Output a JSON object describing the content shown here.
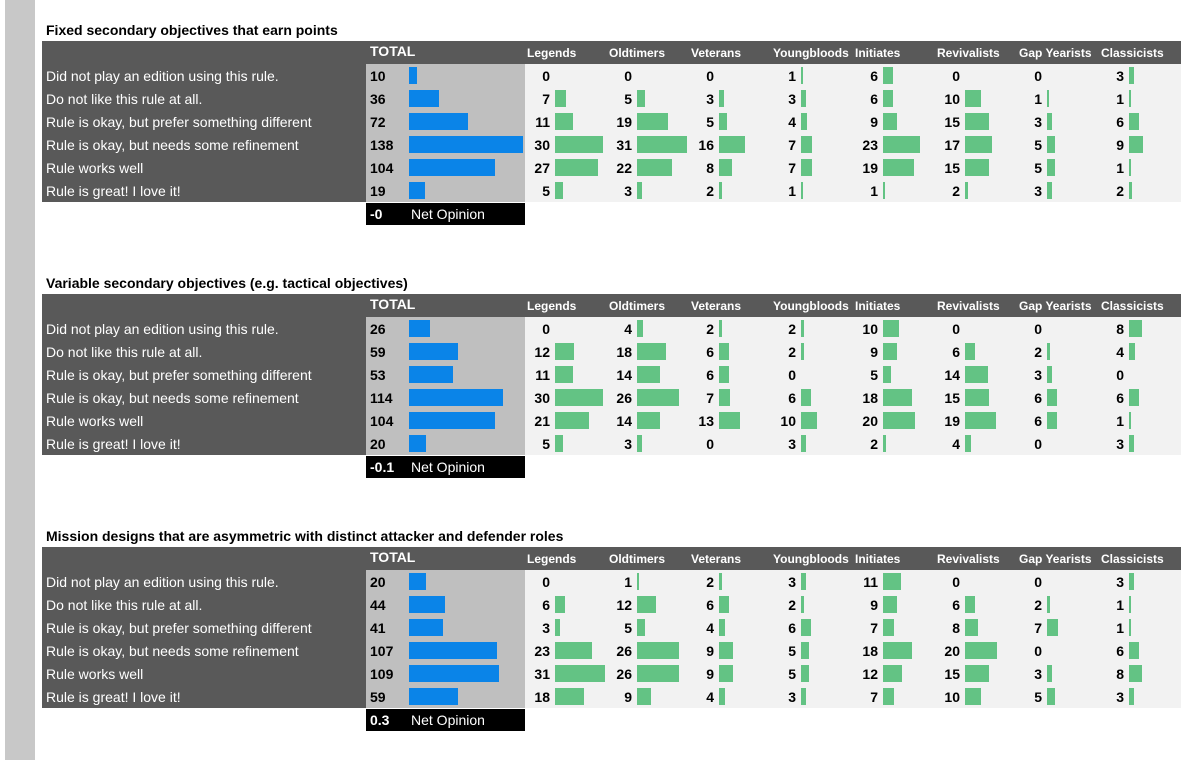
{
  "chart_data": [
    {
      "type": "table",
      "title": "Fixed secondary objectives that earn points",
      "total_header": "TOTAL",
      "groups": [
        "Legends",
        "Oldtimers",
        "Veterans",
        "Youngbloods",
        "Initiates",
        "Revivalists",
        "Gap Yearists",
        "Classicists"
      ],
      "rows": [
        {
          "label": "Did not play an edition using this rule.",
          "total": 10,
          "values": [
            0,
            0,
            0,
            1,
            6,
            0,
            0,
            3
          ]
        },
        {
          "label": "Do not like this rule at all.",
          "total": 36,
          "values": [
            7,
            5,
            3,
            3,
            6,
            10,
            1,
            1
          ]
        },
        {
          "label": "Rule is okay, but prefer something different",
          "total": 72,
          "values": [
            11,
            19,
            5,
            4,
            9,
            15,
            3,
            6
          ]
        },
        {
          "label": "Rule is okay, but needs some refinement",
          "total": 138,
          "values": [
            30,
            31,
            16,
            7,
            23,
            17,
            5,
            9
          ]
        },
        {
          "label": "Rule works well",
          "total": 104,
          "values": [
            27,
            22,
            8,
            7,
            19,
            15,
            5,
            1
          ]
        },
        {
          "label": "Rule is great! I love it!",
          "total": 19,
          "values": [
            5,
            3,
            2,
            1,
            1,
            2,
            3,
            2
          ]
        }
      ],
      "net_opinion": "-0",
      "net_label": "Net Opinion"
    },
    {
      "type": "table",
      "title": "Variable secondary objectives (e.g. tactical objectives)",
      "total_header": "TOTAL",
      "groups": [
        "Legends",
        "Oldtimers",
        "Veterans",
        "Youngbloods",
        "Initiates",
        "Revivalists",
        "Gap Yearists",
        "Classicists"
      ],
      "rows": [
        {
          "label": "Did not play an edition using this rule.",
          "total": 26,
          "values": [
            0,
            4,
            2,
            2,
            10,
            0,
            0,
            8
          ]
        },
        {
          "label": "Do not like this rule at all.",
          "total": 59,
          "values": [
            12,
            18,
            6,
            2,
            9,
            6,
            2,
            4
          ]
        },
        {
          "label": "Rule is okay, but prefer something different",
          "total": 53,
          "values": [
            11,
            14,
            6,
            0,
            5,
            14,
            3,
            0
          ]
        },
        {
          "label": "Rule is okay, but needs some refinement",
          "total": 114,
          "values": [
            30,
            26,
            7,
            6,
            18,
            15,
            6,
            6
          ]
        },
        {
          "label": "Rule works well",
          "total": 104,
          "values": [
            21,
            14,
            13,
            10,
            20,
            19,
            6,
            1
          ]
        },
        {
          "label": "Rule is great! I love it!",
          "total": 20,
          "values": [
            5,
            3,
            0,
            3,
            2,
            4,
            0,
            3
          ]
        }
      ],
      "net_opinion": "-0.1",
      "net_label": "Net Opinion"
    },
    {
      "type": "table",
      "title": "Mission designs that are asymmetric with distinct attacker and defender roles",
      "total_header": "TOTAL",
      "groups": [
        "Legends",
        "Oldtimers",
        "Veterans",
        "Youngbloods",
        "Initiates",
        "Revivalists",
        "Gap Yearists",
        "Classicists"
      ],
      "rows": [
        {
          "label": "Did not play an edition using this rule.",
          "total": 20,
          "values": [
            0,
            1,
            2,
            3,
            11,
            0,
            0,
            3
          ]
        },
        {
          "label": "Do not like this rule at all.",
          "total": 44,
          "values": [
            6,
            12,
            6,
            2,
            9,
            6,
            2,
            1
          ]
        },
        {
          "label": "Rule is okay, but prefer something different",
          "total": 41,
          "values": [
            3,
            5,
            4,
            6,
            7,
            8,
            7,
            1
          ]
        },
        {
          "label": "Rule is okay, but needs some refinement",
          "total": 107,
          "values": [
            23,
            26,
            9,
            5,
            18,
            20,
            0,
            6
          ]
        },
        {
          "label": "Rule works well",
          "total": 109,
          "values": [
            31,
            26,
            9,
            5,
            12,
            15,
            3,
            8
          ]
        },
        {
          "label": "Rule is great! I love it!",
          "total": 59,
          "values": [
            18,
            9,
            4,
            3,
            7,
            10,
            5,
            3
          ]
        }
      ],
      "net_opinion": "0.3",
      "net_label": "Net Opinion"
    }
  ]
}
